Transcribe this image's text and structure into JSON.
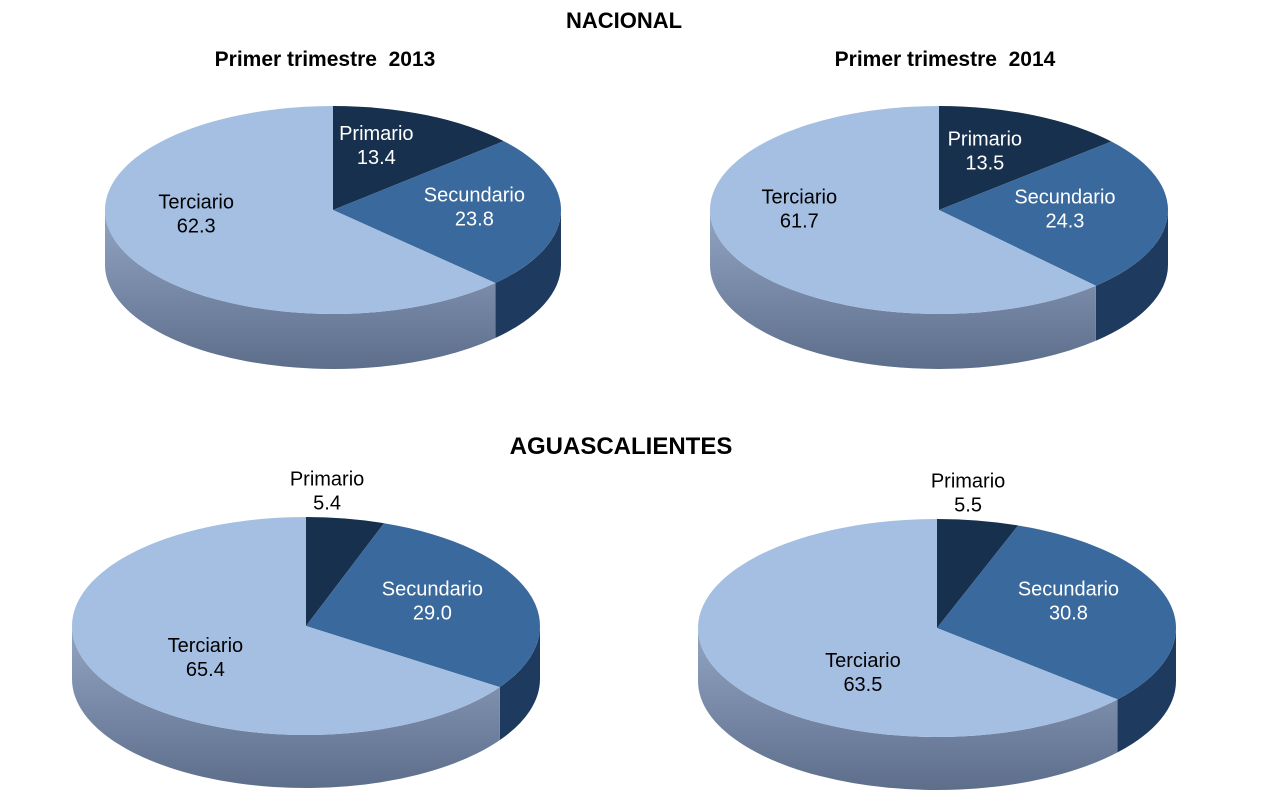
{
  "page": {
    "section_nacional": "NACIONAL",
    "section_aguascalientes": "AGUASCALIENTES",
    "column_left_subtitle": "Primer trimestre  2013",
    "column_right_subtitle": "Primer trimestre  2014"
  },
  "colors": {
    "background": "#FFFFFF",
    "title_text": "#000000",
    "primario": "#16304D",
    "secundario": "#3A6A9D",
    "terciario": "#A5BFE2",
    "rim_primario": "#0F2237",
    "rim_secundario": "#1E3A5E",
    "rim_terciario_top": "#92A5C3",
    "rim_terciario_bottom": "#5D6E8B",
    "label_on_dark": "#FFFFFF",
    "label_on_light": "#000000"
  },
  "chart_data": [
    {
      "id": "nacional-2013",
      "type": "pie",
      "shape": "3d-pie",
      "region": "NACIONAL",
      "period": "Primer trimestre 2013",
      "unit": "percent",
      "start_angle": 0,
      "direction": "clockwise",
      "legend": "none",
      "slices": [
        {
          "name": "Primario",
          "value": 13.4,
          "color_key": "primario",
          "label_color": "#FFFFFF",
          "label_pos": "inside",
          "label_at": [
            0.19,
            -0.63
          ]
        },
        {
          "name": "Secundario",
          "value": 23.8,
          "color_key": "secundario",
          "label_color": "#FFFFFF",
          "label_pos": "inside",
          "label_at": [
            0.62,
            -0.04
          ]
        },
        {
          "name": "Terciario",
          "value": 62.3,
          "color_key": "terciario",
          "label_color": "#000000",
          "label_pos": "inside",
          "label_at": [
            -0.6,
            0.03
          ]
        }
      ]
    },
    {
      "id": "nacional-2014",
      "type": "pie",
      "shape": "3d-pie",
      "region": "NACIONAL",
      "period": "Primer trimestre 2014",
      "unit": "percent",
      "start_angle": 0,
      "direction": "clockwise",
      "legend": "none",
      "slices": [
        {
          "name": "Primario",
          "value": 13.5,
          "color_key": "primario",
          "label_color": "#FFFFFF",
          "label_pos": "inside",
          "label_at": [
            0.2,
            -0.58
          ]
        },
        {
          "name": "Secundario",
          "value": 24.3,
          "color_key": "secundario",
          "label_color": "#FFFFFF",
          "label_pos": "inside",
          "label_at": [
            0.55,
            -0.02
          ]
        },
        {
          "name": "Terciario",
          "value": 61.7,
          "color_key": "terciario",
          "label_color": "#000000",
          "label_pos": "inside",
          "label_at": [
            -0.61,
            -0.02
          ]
        }
      ]
    },
    {
      "id": "aguascalientes-2013",
      "type": "pie",
      "shape": "3d-pie",
      "region": "AGUASCALIENTES",
      "period": "Primer trimestre 2013",
      "unit": "percent",
      "start_angle": 0,
      "direction": "clockwise",
      "legend": "none",
      "slices": [
        {
          "name": "Primario",
          "value": 5.4,
          "color_key": "primario",
          "label_color": "#000000",
          "label_pos": "outside",
          "label_at": [
            0.09,
            -1.25
          ]
        },
        {
          "name": "Secundario",
          "value": 29.0,
          "color_key": "secundario",
          "label_color": "#FFFFFF",
          "label_pos": "inside",
          "label_at": [
            0.54,
            -0.24
          ]
        },
        {
          "name": "Terciario",
          "value": 65.4,
          "color_key": "terciario",
          "label_color": "#000000",
          "label_pos": "inside",
          "label_at": [
            -0.43,
            0.28
          ]
        }
      ]
    },
    {
      "id": "aguascalientes-2014",
      "type": "pie",
      "shape": "3d-pie",
      "region": "AGUASCALIENTES",
      "period": "Primer trimestre 2014",
      "unit": "percent",
      "start_angle": 0,
      "direction": "clockwise",
      "legend": "none",
      "slices": [
        {
          "name": "Primario",
          "value": 5.5,
          "color_key": "primario",
          "label_color": "#000000",
          "label_pos": "outside",
          "label_at": [
            0.13,
            -1.25
          ]
        },
        {
          "name": "Secundario",
          "value": 30.8,
          "color_key": "secundario",
          "label_color": "#FFFFFF",
          "label_pos": "inside",
          "label_at": [
            0.55,
            -0.26
          ]
        },
        {
          "name": "Terciario",
          "value": 63.5,
          "color_key": "terciario",
          "label_color": "#000000",
          "label_pos": "inside",
          "label_at": [
            -0.31,
            0.4
          ]
        }
      ]
    }
  ]
}
